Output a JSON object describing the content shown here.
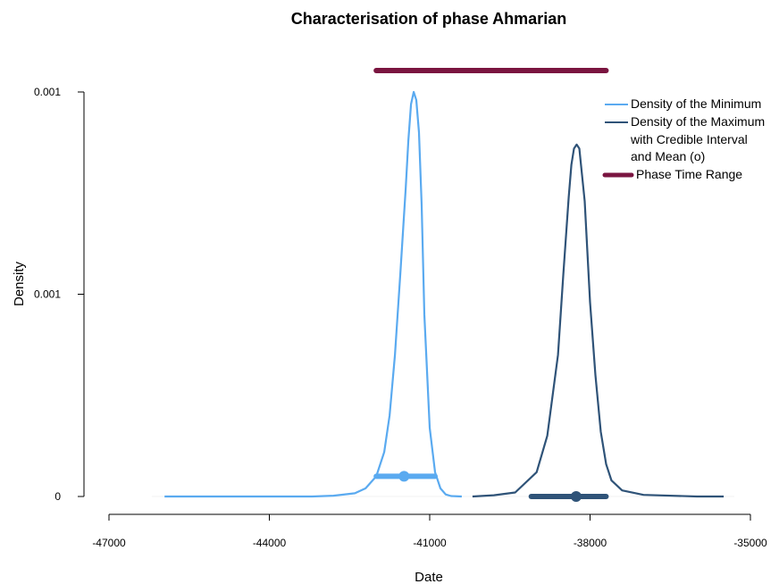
{
  "chart_data": {
    "type": "line",
    "title": "Characterisation of phase Ahmarian",
    "xlabel": "Date",
    "ylabel": "Density",
    "xlim": [
      -47000,
      -35000
    ],
    "ylim": [
      0,
      0.001
    ],
    "x_ticks": [
      -47000,
      -44000,
      -41000,
      -38000,
      -35000
    ],
    "x_tick_labels": [
      "-47000",
      "-44000",
      "-41000",
      "-38000",
      "-35000"
    ],
    "y_ticks": [
      0,
      0.0005,
      0.001
    ],
    "y_tick_labels": [
      "0",
      "0.001",
      "0.001"
    ],
    "grid": false,
    "legend_position": "top-right",
    "legend": [
      "Density of the Minimum",
      "Density of the Maximum",
      "with Credible Interval",
      " and Mean (o)",
      "Phase Time Range"
    ],
    "colors": {
      "minimum": "#5aaaf0",
      "maximum": "#2f5378",
      "range": "#7a1540"
    },
    "series": [
      {
        "name": "Density of the Minimum",
        "x": [
          -45960,
          -45000,
          -44000,
          -43200,
          -42800,
          -42400,
          -42200,
          -42000,
          -41850,
          -41750,
          -41650,
          -41550,
          -41450,
          -41400,
          -41350,
          -41300,
          -41250,
          -41200,
          -41150,
          -41100,
          -41000,
          -40900,
          -40800,
          -40700,
          -40600,
          -40400
        ],
        "y": [
          0,
          0,
          0,
          0,
          2e-06,
          8e-06,
          2e-05,
          5e-05,
          0.00011,
          0.0002,
          0.00035,
          0.00055,
          0.00076,
          0.00088,
          0.00097,
          0.001,
          0.00098,
          0.0009,
          0.00072,
          0.00045,
          0.00017,
          6e-05,
          2e-05,
          5e-06,
          1e-06,
          0
        ]
      },
      {
        "name": "Density of the Maximum",
        "x": [
          -40200,
          -39800,
          -39400,
          -39000,
          -38800,
          -38600,
          -38500,
          -38400,
          -38350,
          -38300,
          -38250,
          -38200,
          -38100,
          -38000,
          -37900,
          -37800,
          -37700,
          -37600,
          -37400,
          -37000,
          -36000,
          -35500
        ],
        "y": [
          0,
          3e-06,
          1e-05,
          6e-05,
          0.00015,
          0.00035,
          0.00055,
          0.00074,
          0.00082,
          0.00086,
          0.00087,
          0.00086,
          0.00073,
          0.00048,
          0.0003,
          0.00016,
          8e-05,
          4e-05,
          1.5e-05,
          4e-06,
          0,
          0
        ]
      }
    ],
    "credible_intervals": [
      {
        "series": "Density of the Minimum",
        "x_start": -42000,
        "x_end": -40900,
        "mean": -41480,
        "y": 5e-05
      },
      {
        "series": "Density of the Maximum",
        "x_start": -39100,
        "x_end": -37700,
        "mean": -38260,
        "y": 0
      }
    ],
    "phase_time_range": {
      "x_start": -42000,
      "x_end": -37700
    }
  }
}
